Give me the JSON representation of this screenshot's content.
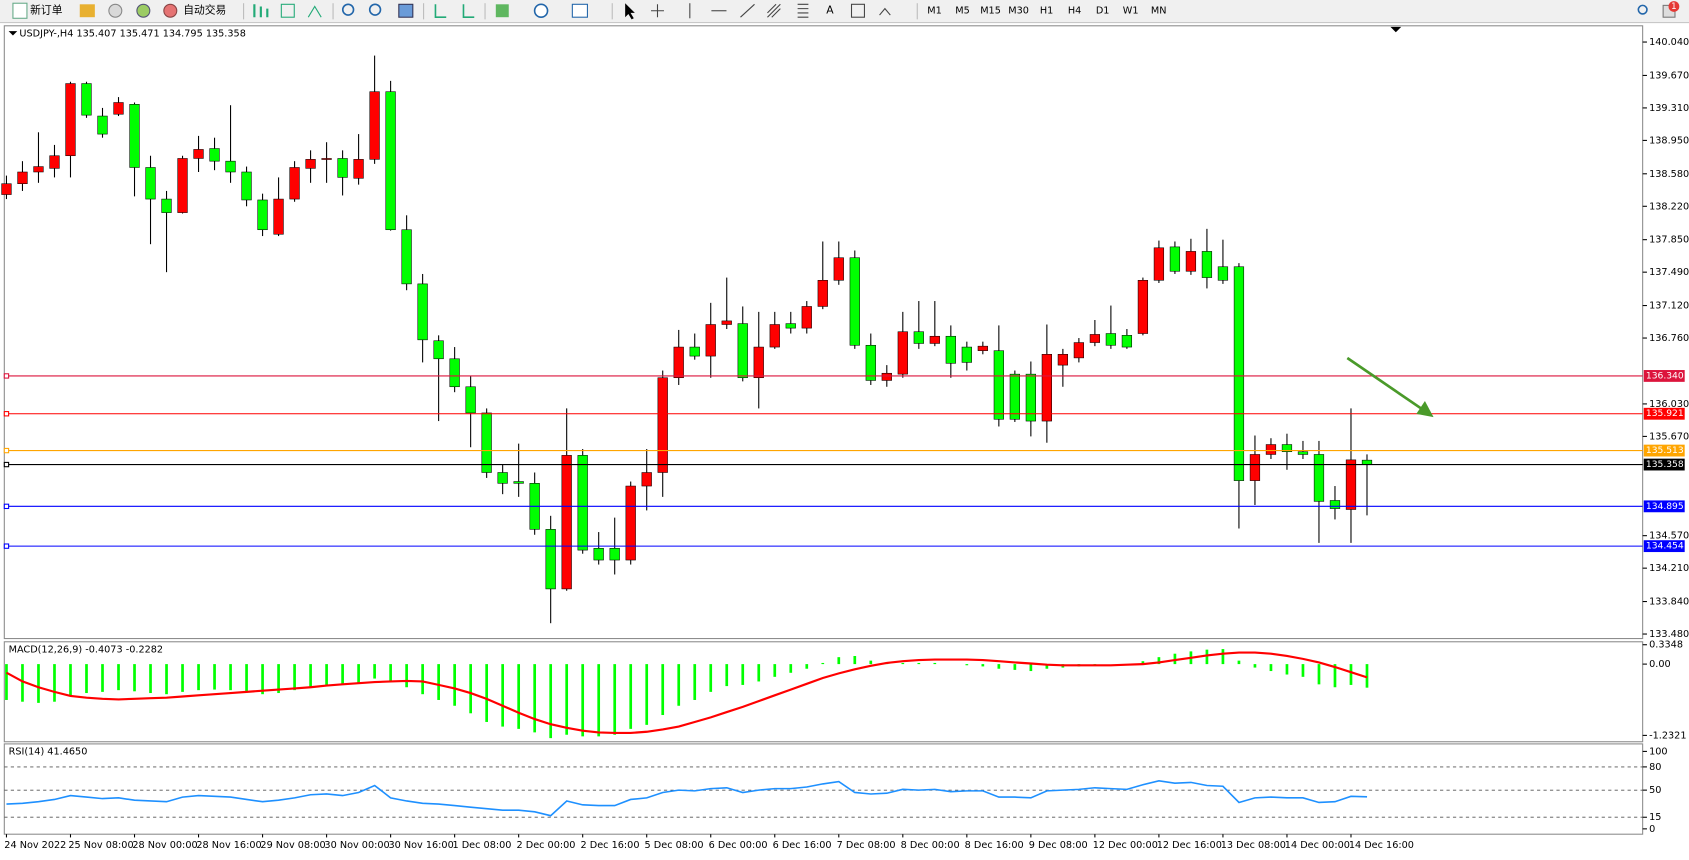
{
  "toolbar": {
    "new_order": "新订单",
    "auto_trading": "自动交易",
    "text_tool": "A",
    "timeframes": [
      "M1",
      "M5",
      "M15",
      "M30",
      "H1",
      "H4",
      "D1",
      "W1",
      "MN"
    ],
    "badge": 1
  },
  "chart_data": [
    {
      "type": "candlestick",
      "title": "USDJPY-,H4  135.407 135.471 134.795 135.358",
      "categories": [
        "24 Nov 2022",
        null,
        null,
        null,
        "25 Nov 08:00",
        null,
        null,
        null,
        "28 Nov 00:00",
        null,
        null,
        null,
        "28 Nov 16:00",
        null,
        null,
        null,
        "29 Nov 08:00",
        null,
        null,
        null,
        "30 Nov 00:00",
        null,
        null,
        null,
        "30 Nov 16:00",
        null,
        null,
        null,
        "1 Dec 08:00",
        null,
        null,
        null,
        "2 Dec 00:00",
        null,
        null,
        null,
        "2 Dec 16:00",
        null,
        null,
        null,
        "5 Dec 08:00",
        null,
        null,
        null,
        "6 Dec 00:00",
        null,
        null,
        null,
        "6 Dec 16:00",
        null,
        null,
        null,
        "7 Dec 08:00",
        null,
        null,
        null,
        "8 Dec 00:00",
        null,
        null,
        null,
        "8 Dec 16:00",
        null,
        null,
        null,
        "9 Dec 08:00",
        null,
        null,
        null,
        "12 Dec 00:00",
        null,
        null,
        null,
        "12 Dec 16:00",
        null,
        null,
        null,
        "13 Dec 08:00",
        null,
        null,
        null,
        "14 Dec 00:00",
        null,
        null,
        null,
        "14 Dec 16:00",
        null
      ],
      "open": [
        138.35,
        138.47,
        138.6,
        138.64,
        138.78,
        139.58,
        139.22,
        139.24,
        139.35,
        138.65,
        138.3,
        138.15,
        138.75,
        138.86,
        138.72,
        138.6,
        138.29,
        137.91,
        138.3,
        138.64,
        138.74,
        138.75,
        138.53,
        138.74,
        139.49,
        137.96,
        137.36,
        136.73,
        136.53,
        136.22,
        135.93,
        135.27,
        135.17,
        135.15,
        134.64,
        133.98,
        135.46,
        134.43,
        134.43,
        134.3,
        135.12,
        135.27,
        136.32,
        136.66,
        136.56,
        136.91,
        136.92,
        136.32,
        136.66,
        136.92,
        136.87,
        137.11,
        137.4,
        137.65,
        136.68,
        136.29,
        136.36,
        136.83,
        136.7,
        136.78,
        136.66,
        136.62,
        136.62,
        136.36,
        136.36,
        135.84,
        136.46,
        136.54,
        136.71,
        136.81,
        136.79,
        136.81,
        137.4,
        137.77,
        137.5,
        137.72,
        137.55,
        137.55,
        135.18,
        135.47,
        135.58,
        135.5,
        135.47,
        134.96,
        134.86,
        135.407
      ],
      "high": [
        138.56,
        138.72,
        139.04,
        138.9,
        139.6,
        139.6,
        139.31,
        139.43,
        139.37,
        138.78,
        138.39,
        138.78,
        139.0,
        138.98,
        139.34,
        138.66,
        138.36,
        138.54,
        138.72,
        138.84,
        138.93,
        138.84,
        139.02,
        139.89,
        139.61,
        138.12,
        137.47,
        136.79,
        136.66,
        136.34,
        135.98,
        135.36,
        135.59,
        135.27,
        134.79,
        135.98,
        135.53,
        134.61,
        134.77,
        135.17,
        135.53,
        136.4,
        136.85,
        136.81,
        137.15,
        137.43,
        137.11,
        137.05,
        137.05,
        137.05,
        137.17,
        137.83,
        137.83,
        137.73,
        136.81,
        136.46,
        137.05,
        137.17,
        137.17,
        136.9,
        136.72,
        136.72,
        136.9,
        136.4,
        136.5,
        136.91,
        136.64,
        136.76,
        136.96,
        137.12,
        136.86,
        137.43,
        137.84,
        137.83,
        137.86,
        137.97,
        137.85,
        137.59,
        135.68,
        135.65,
        135.7,
        135.62,
        135.62,
        135.12,
        135.98,
        135.471
      ],
      "low": [
        138.3,
        138.39,
        138.48,
        138.54,
        138.54,
        139.2,
        138.98,
        139.22,
        138.33,
        137.8,
        137.49,
        138.14,
        138.6,
        138.62,
        138.48,
        138.22,
        137.89,
        137.89,
        138.27,
        138.48,
        138.48,
        138.34,
        138.46,
        138.69,
        137.95,
        137.29,
        136.49,
        135.84,
        136.16,
        135.55,
        135.21,
        135.03,
        135.0,
        134.58,
        133.6,
        133.96,
        134.37,
        134.25,
        134.14,
        134.25,
        134.85,
        135.0,
        136.24,
        136.52,
        136.32,
        136.86,
        136.28,
        135.98,
        136.64,
        136.81,
        136.81,
        137.08,
        137.35,
        136.64,
        136.24,
        136.22,
        136.32,
        136.64,
        136.67,
        136.32,
        136.4,
        136.58,
        135.78,
        135.83,
        135.67,
        135.6,
        136.22,
        136.49,
        136.67,
        136.64,
        136.64,
        136.79,
        137.37,
        137.47,
        137.46,
        137.31,
        137.36,
        134.65,
        134.91,
        135.42,
        135.3,
        135.42,
        134.49,
        134.75,
        134.49,
        134.795
      ],
      "close": [
        138.47,
        138.6,
        138.66,
        138.78,
        139.58,
        139.23,
        139.02,
        139.37,
        138.65,
        138.3,
        138.15,
        138.75,
        138.85,
        138.72,
        138.6,
        138.29,
        137.96,
        138.3,
        138.65,
        138.74,
        138.75,
        138.54,
        138.74,
        139.49,
        137.96,
        137.36,
        136.74,
        136.53,
        136.22,
        135.93,
        135.27,
        135.15,
        135.15,
        134.64,
        133.98,
        135.46,
        134.41,
        134.3,
        134.3,
        135.12,
        135.27,
        136.32,
        136.66,
        136.56,
        136.91,
        136.95,
        136.32,
        136.66,
        136.91,
        136.87,
        137.11,
        137.4,
        137.65,
        136.68,
        136.29,
        136.37,
        136.83,
        136.7,
        136.78,
        136.48,
        136.49,
        136.67,
        135.86,
        135.86,
        135.84,
        136.58,
        136.58,
        136.71,
        136.8,
        136.68,
        136.66,
        137.4,
        137.76,
        137.5,
        137.72,
        137.43,
        137.4,
        135.18,
        135.47,
        135.58,
        135.5,
        135.47,
        134.95,
        134.87,
        135.41,
        135.358
      ],
      "up_color": "#ff0000",
      "down_color": "#00ff00",
      "ylim": [
        133.43,
        140.22
      ],
      "yticks": [
        {
          "value": 140.04,
          "label": "140.040"
        },
        {
          "value": 139.67,
          "label": "139.670"
        },
        {
          "value": 139.31,
          "label": "139.310"
        },
        {
          "value": 138.95,
          "label": "138.950"
        },
        {
          "value": 138.58,
          "label": "138.580"
        },
        {
          "value": 138.22,
          "label": "138.220"
        },
        {
          "value": 137.85,
          "label": "137.850"
        },
        {
          "value": 137.49,
          "label": "137.490"
        },
        {
          "value": 137.12,
          "label": "137.120"
        },
        {
          "value": 136.76,
          "label": "136.760"
        },
        {
          "value": 136.03,
          "label": "136.030"
        },
        {
          "value": 135.67,
          "label": "135.670"
        },
        {
          "value": 134.57,
          "label": "134.570"
        },
        {
          "value": 134.21,
          "label": "134.210"
        },
        {
          "value": 133.84,
          "label": "133.840"
        },
        {
          "value": 133.48,
          "label": "133.480"
        }
      ],
      "levels": [
        {
          "value": 136.34,
          "label": "136.340",
          "color": "#dc143c"
        },
        {
          "value": 135.921,
          "color": "#ff0000"
        },
        {
          "value": 135.513,
          "color": "#ffa500"
        },
        {
          "value": 135.358,
          "color": "#000000"
        },
        {
          "value": 134.895,
          "color": "#0000ff"
        },
        {
          "value": 134.454,
          "color": "#0000ff"
        }
      ]
    },
    {
      "type": "macd",
      "title": "MACD(12,26,9) -0.4073 -0.2282",
      "histogram": {
        "color": "#00ff00",
        "values": [
          -0.62,
          -0.65,
          -0.67,
          -0.65,
          -0.55,
          -0.5,
          -0.48,
          -0.45,
          -0.47,
          -0.5,
          -0.52,
          -0.48,
          -0.45,
          -0.44,
          -0.45,
          -0.48,
          -0.52,
          -0.5,
          -0.45,
          -0.4,
          -0.36,
          -0.36,
          -0.33,
          -0.25,
          -0.3,
          -0.4,
          -0.52,
          -0.62,
          -0.72,
          -0.85,
          -1.0,
          -1.08,
          -1.12,
          -1.18,
          -1.28,
          -1.22,
          -1.25,
          -1.25,
          -1.22,
          -1.12,
          -1.05,
          -0.88,
          -0.72,
          -0.62,
          -0.48,
          -0.38,
          -0.36,
          -0.3,
          -0.22,
          -0.15,
          -0.08,
          0.02,
          0.12,
          0.14,
          0.06,
          0.02,
          0.02,
          0.02,
          0.02,
          0,
          -0.02,
          -0.04,
          -0.08,
          -0.1,
          -0.12,
          -0.08,
          -0.06,
          -0.04,
          -0.02,
          0,
          0,
          0.05,
          0.12,
          0.18,
          0.22,
          0.25,
          0.26,
          0.06,
          -0.06,
          -0.12,
          -0.18,
          -0.22,
          -0.35,
          -0.4,
          -0.36,
          -0.4073
        ]
      },
      "signal": {
        "color": "#ff0000",
        "values": [
          -0.15,
          -0.3,
          -0.4,
          -0.48,
          -0.55,
          -0.58,
          -0.6,
          -0.61,
          -0.6,
          -0.59,
          -0.58,
          -0.56,
          -0.54,
          -0.52,
          -0.5,
          -0.48,
          -0.46,
          -0.44,
          -0.42,
          -0.4,
          -0.37,
          -0.35,
          -0.33,
          -0.31,
          -0.3,
          -0.29,
          -0.3,
          -0.36,
          -0.42,
          -0.5,
          -0.6,
          -0.72,
          -0.84,
          -0.95,
          -1.04,
          -1.1,
          -1.15,
          -1.18,
          -1.19,
          -1.19,
          -1.17,
          -1.13,
          -1.08,
          -1.0,
          -0.92,
          -0.83,
          -0.74,
          -0.64,
          -0.54,
          -0.44,
          -0.34,
          -0.24,
          -0.16,
          -0.09,
          -0.03,
          0.02,
          0.05,
          0.07,
          0.08,
          0.08,
          0.08,
          0.07,
          0.05,
          0.03,
          0.01,
          -0.01,
          -0.02,
          -0.02,
          -0.02,
          -0.02,
          -0.01,
          0,
          0.03,
          0.07,
          0.11,
          0.15,
          0.18,
          0.2,
          0.2,
          0.18,
          0.14,
          0.09,
          0.03,
          -0.05,
          -0.14,
          -0.2282
        ]
      },
      "ylim": [
        -1.342,
        0.386
      ],
      "yticks": [
        0.3348,
        {
          "value": 0,
          "label": "0.00"
        },
        -1.2321
      ]
    },
    {
      "type": "rsi",
      "title": "RSI(14) 41.4650",
      "color": "#1e90ff",
      "values": [
        32,
        33,
        35,
        38,
        43,
        41,
        39,
        40,
        37,
        36,
        35,
        41,
        43,
        42,
        41,
        38,
        35,
        37,
        40,
        44,
        45,
        43,
        47,
        56,
        40,
        36,
        33,
        32,
        30,
        28,
        26,
        24,
        24,
        22,
        17,
        36,
        31,
        30,
        30,
        38,
        40,
        47,
        50,
        49,
        52,
        53,
        47,
        50,
        52,
        52,
        54,
        58,
        61,
        47,
        45,
        46,
        51,
        50,
        51,
        48,
        49,
        49,
        41,
        41,
        40,
        49,
        50,
        51,
        53,
        52,
        51,
        57,
        62,
        59,
        60,
        56,
        55,
        34,
        40,
        41,
        40,
        40,
        34,
        35,
        42,
        41.465
      ],
      "levels": [
        80,
        50,
        15
      ],
      "ylim": [
        -6.9,
        109.7
      ],
      "yticks": [
        100,
        80,
        50,
        15,
        0
      ]
    }
  ]
}
